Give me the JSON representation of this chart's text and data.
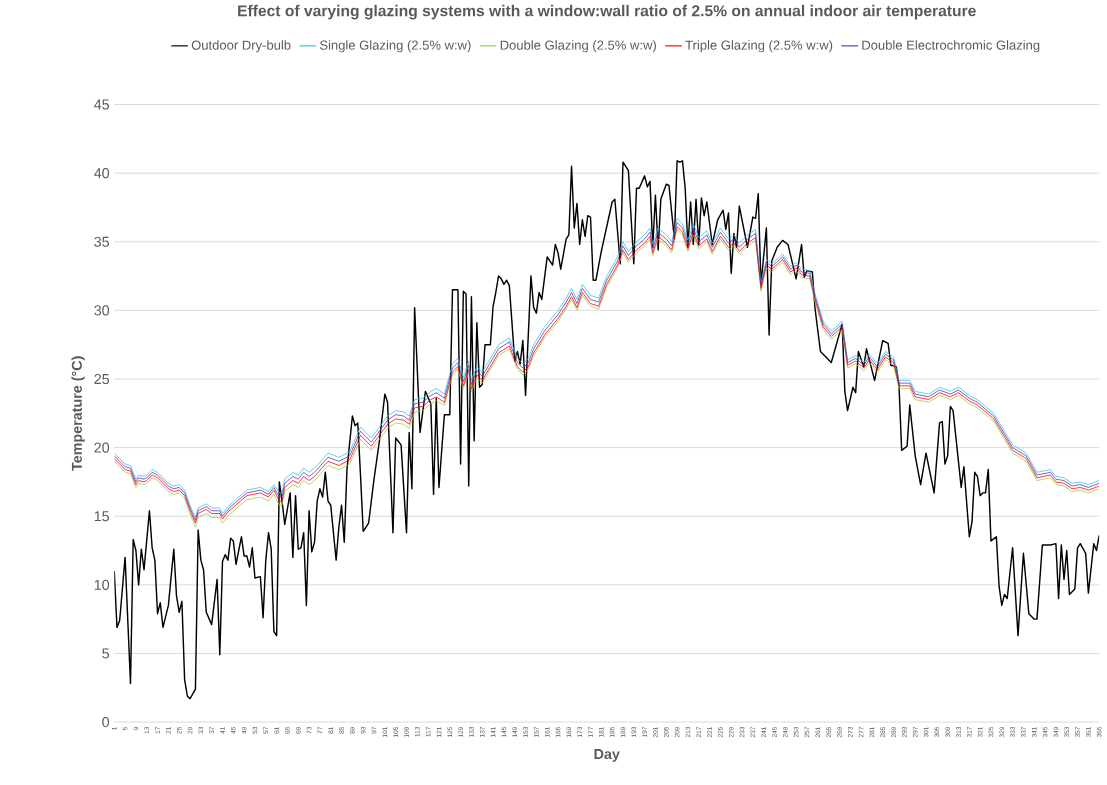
{
  "chart_data": {
    "type": "line",
    "title": "Effect of varying glazing systems with a window:wall ratio of 2.5% on annual indoor air temperature",
    "xlabel": "Day",
    "ylabel": "Temperature (°C)",
    "xlim": [
      1,
      365
    ],
    "ylim": [
      0,
      45
    ],
    "yticks": [
      0,
      5,
      10,
      15,
      20,
      25,
      30,
      35,
      40,
      45
    ],
    "xticks": [
      1,
      5,
      9,
      13,
      17,
      21,
      25,
      29,
      33,
      37,
      41,
      45,
      49,
      53,
      57,
      61,
      65,
      69,
      73,
      77,
      81,
      85,
      89,
      93,
      97,
      101,
      105,
      109,
      113,
      117,
      121,
      125,
      129,
      133,
      137,
      141,
      145,
      149,
      153,
      157,
      161,
      165,
      169,
      173,
      177,
      181,
      185,
      189,
      193,
      197,
      201,
      205,
      209,
      213,
      217,
      221,
      225,
      229,
      233,
      237,
      241,
      245,
      249,
      253,
      257,
      261,
      265,
      269,
      273,
      277,
      281,
      285,
      289,
      293,
      297,
      301,
      305,
      309,
      313,
      317,
      321,
      325,
      329,
      333,
      337,
      341,
      345,
      349,
      353,
      357,
      361,
      365
    ],
    "grid": "y",
    "legend": "top",
    "marker": "none",
    "line_style": "solid",
    "series": [
      {
        "name": "Outdoor Dry-bulb",
        "color": "#000000",
        "x": [
          1,
          2,
          3,
          5,
          7,
          8,
          9,
          10,
          11,
          12,
          14,
          15,
          16,
          17,
          18,
          19,
          21,
          23,
          24,
          25,
          26,
          27,
          28,
          29,
          31,
          32,
          33,
          34,
          35,
          37,
          39,
          40,
          41,
          42,
          43,
          44,
          45,
          46,
          48,
          49,
          50,
          51,
          52,
          53,
          55,
          56,
          57,
          58,
          59,
          60,
          61,
          62,
          63,
          64,
          66,
          67,
          68,
          69,
          70,
          71,
          72,
          73,
          74,
          75,
          76,
          77,
          78,
          79,
          80,
          81,
          83,
          84,
          85,
          86,
          87,
          89,
          90,
          91,
          92,
          93,
          95,
          97,
          99,
          101,
          102,
          104,
          105,
          107,
          109,
          110,
          111,
          112,
          114,
          116,
          118,
          119,
          120,
          121,
          123,
          125,
          126,
          128,
          129,
          130,
          131,
          132,
          133,
          134,
          135,
          136,
          137,
          138,
          140,
          141,
          142,
          143,
          144,
          145,
          146,
          147,
          149,
          150,
          151,
          152,
          153,
          155,
          156,
          157,
          158,
          159,
          161,
          163,
          164,
          165,
          166,
          168,
          169,
          170,
          171,
          172,
          173,
          174,
          175,
          176,
          177,
          178,
          179,
          181,
          185,
          186,
          188,
          189,
          191,
          193,
          194,
          195,
          197,
          198,
          199,
          200,
          201,
          202,
          203,
          205,
          206,
          208,
          209,
          210,
          211,
          212,
          213,
          214,
          215,
          216,
          217,
          218,
          219,
          220,
          222,
          224,
          226,
          227,
          228,
          229,
          230,
          231,
          232,
          235,
          237,
          238,
          239,
          240,
          242,
          243,
          244,
          246,
          248,
          250,
          253,
          255,
          256,
          257,
          259,
          260,
          262,
          266,
          270,
          271,
          272,
          274,
          275,
          276,
          278,
          279,
          282,
          285,
          287,
          288,
          290,
          291,
          292,
          294,
          295,
          297,
          299,
          301,
          304,
          306,
          307,
          308,
          309,
          310,
          311,
          314,
          315,
          317,
          318,
          319,
          320,
          321,
          322,
          323,
          324,
          325,
          327,
          328,
          329,
          330,
          331,
          333,
          335,
          337,
          339,
          341,
          342,
          344,
          347,
          349,
          350,
          351,
          352,
          353,
          354,
          356,
          357,
          358,
          360,
          361,
          363,
          364,
          365
        ],
        "values": [
          11.0,
          6.9,
          7.4,
          12.0,
          2.8,
          13.3,
          12.5,
          10.0,
          12.6,
          11.1,
          15.4,
          12.7,
          11.8,
          7.9,
          8.7,
          6.9,
          8.5,
          12.6,
          9.2,
          8.0,
          8.8,
          3.1,
          1.9,
          1.7,
          2.4,
          14.0,
          11.8,
          11.1,
          8.0,
          7.1,
          10.4,
          4.9,
          11.7,
          12.2,
          11.8,
          13.4,
          13.2,
          11.5,
          13.5,
          12.1,
          12.1,
          11.3,
          12.7,
          10.5,
          10.6,
          7.6,
          11.8,
          13.8,
          12.6,
          6.6,
          6.3,
          17.5,
          16.1,
          14.4,
          16.7,
          12.0,
          16.5,
          12.6,
          12.7,
          13.8,
          8.5,
          15.4,
          12.4,
          13.1,
          16.1,
          17.0,
          16.4,
          18.2,
          16.1,
          15.8,
          11.8,
          14.2,
          15.8,
          13.1,
          18.4,
          22.3,
          21.6,
          21.8,
          18.0,
          13.9,
          14.5,
          17.7,
          20.5,
          23.9,
          23.3,
          13.8,
          20.7,
          20.2,
          13.8,
          21.1,
          17.0,
          30.2,
          21.1,
          24.1,
          23.2,
          16.6,
          23.6,
          17.1,
          22.4,
          22.4,
          31.5,
          31.5,
          18.8,
          31.4,
          31.2,
          17.2,
          31.0,
          20.5,
          29.1,
          24.4,
          24.6,
          27.5,
          27.5,
          30.3,
          31.3,
          32.5,
          32.3,
          31.9,
          32.2,
          31.8,
          26.3,
          27.0,
          26.1,
          27.8,
          23.8,
          32.5,
          30.2,
          29.8,
          31.3,
          30.8,
          33.9,
          33.3,
          34.8,
          34.2,
          33.0,
          35.2,
          35.5,
          40.5,
          36.0,
          37.8,
          34.8,
          36.6,
          35.4,
          36.9,
          36.8,
          32.2,
          32.2,
          34.3,
          37.9,
          38.1,
          33.4,
          40.8,
          40.2,
          33.4,
          38.9,
          38.9,
          39.8,
          39.0,
          39.4,
          34.6,
          38.4,
          34.4,
          38.1,
          39.2,
          39.1,
          35.2,
          40.9,
          40.8,
          40.9,
          38.9,
          34.6,
          37.9,
          34.8,
          38.1,
          34.8,
          38.2,
          36.9,
          37.9,
          34.8,
          36.6,
          37.3,
          35.9,
          37.1,
          32.7,
          35.6,
          34.6,
          37.6,
          34.6,
          36.8,
          36.7,
          38.5,
          31.9,
          36.0,
          28.2,
          33.6,
          34.6,
          35.1,
          34.8,
          32.3,
          34.8,
          32.4,
          32.9,
          32.8,
          30.1,
          27.0,
          26.2,
          29.0,
          24.1,
          22.7,
          24.4,
          24.0,
          27.0,
          25.9,
          27.2,
          24.9,
          27.8,
          27.6,
          26.0,
          25.9,
          24.6,
          19.8,
          20.1,
          23.1,
          19.4,
          17.3,
          19.6,
          16.7,
          21.8,
          21.9,
          18.8,
          19.4,
          23.0,
          22.7,
          17.1,
          18.6,
          13.5,
          14.6,
          18.2,
          17.9,
          16.5,
          16.7,
          16.7,
          18.4,
          13.2,
          13.5,
          9.9,
          8.5,
          9.3,
          9.0,
          12.7,
          6.3,
          12.3,
          7.9,
          7.5,
          7.5,
          12.9,
          12.9,
          13.0,
          9.0,
          12.9,
          10.4,
          12.5,
          9.3,
          9.7,
          12.7,
          13.0,
          12.3,
          9.4,
          13.0,
          12.5,
          13.6
        ]
      },
      {
        "name": "Single Glazing (2.5% w:w)",
        "color": "#33c3f0",
        "x": [
          1,
          5,
          7,
          9,
          10,
          12,
          13,
          15,
          17,
          19,
          21,
          23,
          25,
          27,
          29,
          31,
          32,
          35,
          37,
          40,
          41,
          43,
          47,
          50,
          55,
          58,
          60,
          62,
          63,
          64,
          67,
          69,
          71,
          73,
          75,
          80,
          84,
          88,
          92,
          96,
          102,
          105,
          108,
          110,
          112,
          115,
          118,
          120,
          123,
          126,
          128,
          130,
          132,
          133,
          135,
          137,
          143,
          147,
          150,
          152,
          154,
          156,
          160,
          165,
          168,
          170,
          172,
          174,
          177,
          180,
          183,
          187,
          189,
          191,
          194,
          197,
          199,
          200,
          202,
          205,
          207,
          209,
          211,
          213,
          215,
          217,
          220,
          222,
          225,
          228,
          230,
          232,
          235,
          238,
          240,
          242,
          244,
          248,
          251,
          253,
          255,
          258,
          260,
          263,
          266,
          270,
          272,
          275,
          278,
          280,
          283,
          286,
          289,
          291,
          295,
          297,
          302,
          306,
          310,
          313,
          317,
          320,
          323,
          326,
          330,
          333,
          338,
          342,
          347,
          349,
          352,
          355,
          358,
          361,
          365
        ],
        "values": [
          19.6,
          18.8,
          18.7,
          17.7,
          18.0,
          17.9,
          18.0,
          18.4,
          18.2,
          17.8,
          17.4,
          17.2,
          17.3,
          16.9,
          15.8,
          14.9,
          15.6,
          15.9,
          15.6,
          15.6,
          15.2,
          15.7,
          16.4,
          16.9,
          17.1,
          16.8,
          17.3,
          16.7,
          16.7,
          17.7,
          18.2,
          18.0,
          18.5,
          18.2,
          18.5,
          19.6,
          19.3,
          19.7,
          21.5,
          20.7,
          22.3,
          22.7,
          22.6,
          22.3,
          23.5,
          23.6,
          24.1,
          24.3,
          23.9,
          26.1,
          26.5,
          25.1,
          26.3,
          24.9,
          25.9,
          25.5,
          27.5,
          28.0,
          26.5,
          26.1,
          26.5,
          27.5,
          28.8,
          30.0,
          30.9,
          31.6,
          30.8,
          31.9,
          31.1,
          30.9,
          32.5,
          33.9,
          35.0,
          34.3,
          35.0,
          35.5,
          36.0,
          34.8,
          36.0,
          35.5,
          35.0,
          36.7,
          36.3,
          35.1,
          36.3,
          35.3,
          35.8,
          34.9,
          36.0,
          35.2,
          35.5,
          34.9,
          35.5,
          35.9,
          32.0,
          33.7,
          33.4,
          34.1,
          33.2,
          33.5,
          33.0,
          32.9,
          31.2,
          29.2,
          28.5,
          29.2,
          26.4,
          26.7,
          26.2,
          26.8,
          26.1,
          27.0,
          26.6,
          24.9,
          24.9,
          24.1,
          23.9,
          24.4,
          24.1,
          24.4,
          23.8,
          23.5,
          23.0,
          22.5,
          21.2,
          20.2,
          19.6,
          18.2,
          18.4,
          17.9,
          17.8,
          17.4,
          17.5,
          17.3,
          17.6
        ]
      },
      {
        "name": "Double Glazing (2.5% w:w)",
        "color": "#92d050",
        "x": [
          1,
          5,
          7,
          9,
          10,
          12,
          13,
          15,
          17,
          19,
          21,
          23,
          25,
          27,
          29,
          31,
          32,
          35,
          37,
          40,
          41,
          43,
          47,
          50,
          55,
          58,
          60,
          62,
          63,
          64,
          67,
          69,
          71,
          73,
          75,
          80,
          84,
          88,
          92,
          96,
          102,
          105,
          108,
          110,
          112,
          115,
          118,
          120,
          123,
          126,
          128,
          130,
          132,
          133,
          135,
          137,
          143,
          147,
          150,
          152,
          154,
          156,
          160,
          165,
          168,
          170,
          172,
          174,
          177,
          180,
          183,
          187,
          189,
          191,
          194,
          197,
          199,
          200,
          202,
          205,
          207,
          209,
          211,
          213,
          215,
          217,
          220,
          222,
          225,
          228,
          230,
          232,
          235,
          238,
          240,
          242,
          244,
          248,
          251,
          253,
          255,
          258,
          260,
          263,
          266,
          270,
          272,
          275,
          278,
          280,
          283,
          286,
          289,
          291,
          295,
          297,
          302,
          306,
          310,
          313,
          317,
          320,
          323,
          326,
          330,
          333,
          338,
          342,
          347,
          349,
          352,
          355,
          358,
          361,
          365
        ],
        "values": [
          19.0,
          18.2,
          18.1,
          17.1,
          17.4,
          17.3,
          17.4,
          17.8,
          17.6,
          17.2,
          16.8,
          16.6,
          16.7,
          16.3,
          15.2,
          14.2,
          14.9,
          15.2,
          14.9,
          14.9,
          14.5,
          15.0,
          15.7,
          16.2,
          16.4,
          16.1,
          16.6,
          15.8,
          15.8,
          16.8,
          17.3,
          17.1,
          17.6,
          17.3,
          17.6,
          18.7,
          18.4,
          18.8,
          20.6,
          19.8,
          21.4,
          21.8,
          21.7,
          21.4,
          22.6,
          22.7,
          23.2,
          23.4,
          23.1,
          25.3,
          25.7,
          24.3,
          25.5,
          24.1,
          25.1,
          24.7,
          26.7,
          27.2,
          25.7,
          25.3,
          25.7,
          26.7,
          28.0,
          29.2,
          30.1,
          30.8,
          30.0,
          31.1,
          30.3,
          30.1,
          31.7,
          33.1,
          34.2,
          33.5,
          34.2,
          34.7,
          35.2,
          34.0,
          35.2,
          34.7,
          34.2,
          35.9,
          35.5,
          34.3,
          35.5,
          34.5,
          35.0,
          34.1,
          35.2,
          34.4,
          34.7,
          34.1,
          34.7,
          35.1,
          31.4,
          33.1,
          32.8,
          33.5,
          32.6,
          32.9,
          32.4,
          32.3,
          30.6,
          28.6,
          27.9,
          28.6,
          25.8,
          26.1,
          25.6,
          26.2,
          25.5,
          26.4,
          26.0,
          24.3,
          24.3,
          23.5,
          23.3,
          23.8,
          23.5,
          23.8,
          23.2,
          22.9,
          22.4,
          21.9,
          20.6,
          19.6,
          19.0,
          17.6,
          17.8,
          17.3,
          17.2,
          16.8,
          16.9,
          16.7,
          17.0
        ]
      },
      {
        "name": "Triple Glazing (2.5% w:w)",
        "color": "#ff0000",
        "x": [
          1,
          5,
          7,
          9,
          10,
          12,
          13,
          15,
          17,
          19,
          21,
          23,
          25,
          27,
          29,
          31,
          32,
          35,
          37,
          40,
          41,
          43,
          47,
          50,
          55,
          58,
          60,
          62,
          63,
          64,
          67,
          69,
          71,
          73,
          75,
          80,
          84,
          88,
          92,
          96,
          102,
          105,
          108,
          110,
          112,
          115,
          118,
          120,
          123,
          126,
          128,
          130,
          132,
          133,
          135,
          137,
          143,
          147,
          150,
          152,
          154,
          156,
          160,
          165,
          168,
          170,
          172,
          174,
          177,
          180,
          183,
          187,
          189,
          191,
          194,
          197,
          199,
          200,
          202,
          205,
          207,
          209,
          211,
          213,
          215,
          217,
          220,
          222,
          225,
          228,
          230,
          232,
          235,
          238,
          240,
          242,
          244,
          248,
          251,
          253,
          255,
          258,
          260,
          263,
          266,
          270,
          272,
          275,
          278,
          280,
          283,
          286,
          289,
          291,
          295,
          297,
          302,
          306,
          310,
          313,
          317,
          320,
          323,
          326,
          330,
          333,
          338,
          342,
          347,
          349,
          352,
          355,
          358,
          361,
          365
        ],
        "values": [
          19.2,
          18.4,
          18.3,
          17.3,
          17.6,
          17.5,
          17.6,
          18.0,
          17.8,
          17.4,
          17.0,
          16.8,
          16.9,
          16.5,
          15.4,
          14.5,
          15.2,
          15.5,
          15.2,
          15.2,
          14.8,
          15.3,
          16.0,
          16.5,
          16.7,
          16.4,
          16.9,
          16.1,
          16.1,
          17.1,
          17.6,
          17.4,
          17.9,
          17.6,
          17.9,
          19.0,
          18.7,
          19.1,
          20.9,
          20.1,
          21.7,
          22.1,
          22.0,
          21.7,
          22.9,
          23.0,
          23.5,
          23.7,
          23.3,
          25.5,
          25.9,
          24.5,
          25.7,
          24.3,
          25.3,
          24.9,
          26.9,
          27.4,
          25.9,
          25.5,
          25.9,
          26.9,
          28.2,
          29.4,
          30.3,
          31.0,
          30.2,
          31.3,
          30.5,
          30.3,
          31.9,
          33.3,
          34.4,
          33.7,
          34.4,
          34.9,
          35.4,
          34.2,
          35.4,
          34.9,
          34.4,
          36.1,
          35.7,
          34.5,
          35.7,
          34.7,
          35.2,
          34.3,
          35.4,
          34.6,
          34.9,
          34.3,
          34.9,
          35.3,
          31.6,
          33.3,
          33.0,
          33.7,
          32.8,
          33.1,
          32.6,
          32.5,
          30.8,
          28.8,
          28.1,
          28.8,
          26.0,
          26.3,
          25.8,
          26.4,
          25.7,
          26.6,
          26.2,
          24.5,
          24.5,
          23.7,
          23.5,
          24.0,
          23.7,
          24.0,
          23.4,
          23.1,
          22.6,
          22.1,
          20.8,
          19.8,
          19.2,
          17.8,
          18.0,
          17.5,
          17.4,
          17.0,
          17.1,
          16.9,
          17.2
        ]
      },
      {
        "name": "Double Electrochromic Glazing",
        "color": "#7030a0",
        "x": [
          1,
          5,
          7,
          9,
          10,
          12,
          13,
          15,
          17,
          19,
          21,
          23,
          25,
          27,
          29,
          31,
          32,
          35,
          37,
          40,
          41,
          43,
          47,
          50,
          55,
          58,
          60,
          62,
          63,
          64,
          67,
          69,
          71,
          73,
          75,
          80,
          84,
          88,
          92,
          96,
          102,
          105,
          108,
          110,
          112,
          115,
          118,
          120,
          123,
          126,
          128,
          130,
          132,
          133,
          135,
          137,
          143,
          147,
          150,
          152,
          154,
          156,
          160,
          165,
          168,
          170,
          172,
          174,
          177,
          180,
          183,
          187,
          189,
          191,
          194,
          197,
          199,
          200,
          202,
          205,
          207,
          209,
          211,
          213,
          215,
          217,
          220,
          222,
          225,
          228,
          230,
          232,
          235,
          238,
          240,
          242,
          244,
          248,
          251,
          253,
          255,
          258,
          260,
          263,
          266,
          270,
          272,
          275,
          278,
          280,
          283,
          286,
          289,
          291,
          295,
          297,
          302,
          306,
          310,
          313,
          317,
          320,
          323,
          326,
          330,
          333,
          338,
          342,
          347,
          349,
          352,
          355,
          358,
          361,
          365
        ],
        "values": [
          19.4,
          18.6,
          18.5,
          17.5,
          17.8,
          17.7,
          17.8,
          18.2,
          18.0,
          17.6,
          17.2,
          17.0,
          17.1,
          16.7,
          15.6,
          14.7,
          15.4,
          15.7,
          15.4,
          15.4,
          15.0,
          15.5,
          16.2,
          16.7,
          16.9,
          16.6,
          17.1,
          16.4,
          16.4,
          17.4,
          17.9,
          17.7,
          18.2,
          17.9,
          18.2,
          19.3,
          19.0,
          19.4,
          21.2,
          20.4,
          22.0,
          22.4,
          22.3,
          22.0,
          23.2,
          23.3,
          23.8,
          24.0,
          23.6,
          25.8,
          26.2,
          24.8,
          26.0,
          24.6,
          25.6,
          25.2,
          27.2,
          27.7,
          26.2,
          25.8,
          26.2,
          27.2,
          28.5,
          29.7,
          30.6,
          31.3,
          30.5,
          31.6,
          30.8,
          30.6,
          32.2,
          33.6,
          34.7,
          34.0,
          34.7,
          35.2,
          35.7,
          34.5,
          35.7,
          35.2,
          34.7,
          36.4,
          36.0,
          34.8,
          36.0,
          35.0,
          35.5,
          34.6,
          35.7,
          34.9,
          35.2,
          34.6,
          35.2,
          35.6,
          31.8,
          33.5,
          33.2,
          33.9,
          33.0,
          33.3,
          32.8,
          32.7,
          31.0,
          29.0,
          28.3,
          29.0,
          26.2,
          26.5,
          26.0,
          26.6,
          25.9,
          26.8,
          26.4,
          24.7,
          24.7,
          23.9,
          23.7,
          24.2,
          23.9,
          24.2,
          23.6,
          23.3,
          22.8,
          22.3,
          21.0,
          20.0,
          19.4,
          18.0,
          18.2,
          17.7,
          17.6,
          17.2,
          17.3,
          17.1,
          17.4
        ]
      }
    ]
  }
}
